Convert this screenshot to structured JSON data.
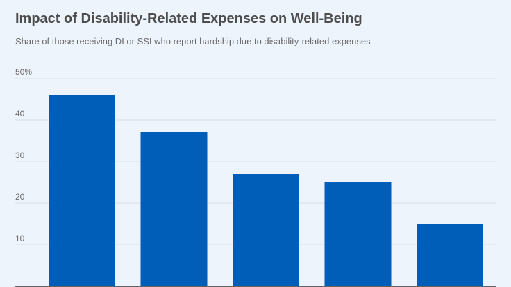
{
  "chart_data": {
    "type": "bar",
    "title": "Impact of Disability-Related Expenses on Well-Being",
    "subtitle": "Share of those receiving DI or SSI who report hardship due to disability-related expenses",
    "xlabel": "",
    "ylabel": "",
    "categories": [
      "",
      "",
      "",
      "",
      ""
    ],
    "values": [
      46,
      37,
      27,
      25,
      15
    ],
    "ylim": [
      0,
      50
    ],
    "yticks": [
      "10",
      "20",
      "30",
      "40",
      "50%"
    ],
    "ytick_values": [
      10,
      20,
      30,
      40,
      50
    ],
    "grid": true,
    "colors": {
      "bar": "#005eb8",
      "grid": "#d5dee9",
      "axis": "#333333",
      "background": "#eef4fc"
    }
  }
}
